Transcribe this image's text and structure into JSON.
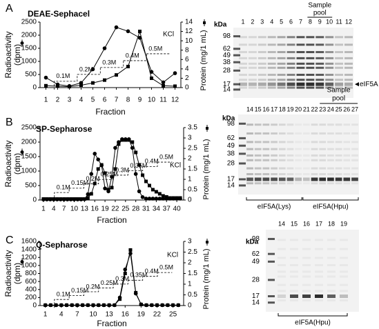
{
  "chart_data": [
    {
      "type": "line",
      "panel": "A",
      "title": "DEAE-Sephacel",
      "ylabel": [
        "Radioactivity",
        "(dpm)"
      ],
      "y2label": "Protein  (mg/1 mL)",
      "xlabel": "Fraction",
      "salt_label": "KCl",
      "salt_steps": [
        "0.1M",
        "0.2M",
        "0.3M",
        "0.4M",
        "0.5M"
      ],
      "x": [
        1,
        2,
        3,
        4,
        5,
        6,
        7,
        8,
        9,
        10,
        11,
        12
      ],
      "xlim": [
        0.5,
        12.5
      ],
      "xticks": [
        1,
        2,
        3,
        4,
        5,
        6,
        7,
        8,
        9,
        10,
        11,
        12
      ],
      "ylim": [
        0,
        2500
      ],
      "yticks": [
        0,
        500,
        1000,
        1500,
        2000,
        2500
      ],
      "y2lim": [
        0,
        14
      ],
      "y2ticks": [
        0,
        2,
        4,
        6,
        8,
        10,
        12,
        14
      ],
      "series": [
        {
          "marker": "circle",
          "color": "#000000",
          "values": [
            380,
            120,
            60,
            180,
            700,
            1500,
            2300,
            2150,
            1900,
            600,
            200,
            550
          ]
        },
        {
          "marker": "square",
          "color": "#000000",
          "axis": "y2",
          "values": [
            0.4,
            0.3,
            0.2,
            0.5,
            1.0,
            1.6,
            2.7,
            4.5,
            12.0,
            2.0,
            0.4,
            0.3
          ]
        }
      ]
    },
    {
      "type": "line",
      "panel": "B",
      "title": "SP-Sepharose",
      "ylabel": [
        "Radioactivity",
        "(dpm)"
      ],
      "y2label": "Protein  (mg/1 mL)",
      "xlabel": "Fraction",
      "salt_label": "KCl",
      "salt_steps": [
        "0.1M",
        "0.15M",
        "0.2M",
        "0.25M",
        "0.3M",
        "0.35M",
        "0.4M",
        "0.5M"
      ],
      "x": [
        1,
        2,
        3,
        4,
        5,
        6,
        7,
        8,
        9,
        10,
        11,
        12,
        13,
        14,
        15,
        16,
        17,
        18,
        19,
        20,
        21,
        22,
        23,
        24,
        25,
        26,
        27,
        28,
        29,
        30,
        31,
        32,
        33,
        34,
        35,
        36,
        37,
        38,
        39,
        40,
        41
      ],
      "xlim": [
        0,
        42
      ],
      "xticks": [
        1,
        4,
        7,
        10,
        13,
        16,
        19,
        22,
        25,
        28,
        31,
        34,
        37,
        40
      ],
      "ylim": [
        0,
        2500
      ],
      "yticks": [
        0,
        500,
        1000,
        1500,
        2000,
        2500
      ],
      "y2lim": [
        0,
        3.5
      ],
      "y2ticks": [
        0,
        0.5,
        1,
        1.5,
        2,
        2.5,
        3,
        3.5
      ],
      "series": [
        {
          "marker": "circle",
          "color": "#000000",
          "values": [
            20,
            20,
            20,
            20,
            20,
            20,
            20,
            20,
            20,
            20,
            20,
            20,
            30,
            200,
            900,
            1600,
            1400,
            1200,
            400,
            300,
            800,
            1800,
            2000,
            2100,
            2100,
            2100,
            1800,
            900,
            300,
            100,
            50,
            50,
            50,
            50,
            50,
            50,
            50,
            50,
            50,
            50,
            50
          ]
        },
        {
          "marker": "square",
          "color": "#000000",
          "axis": "y2",
          "values": [
            0.05,
            0.05,
            0.05,
            0.05,
            0.05,
            0.05,
            0.05,
            0.05,
            0.05,
            0.05,
            0.05,
            0.05,
            0.05,
            0.1,
            0.3,
            0.8,
            1.5,
            1.7,
            1.3,
            0.5,
            0.6,
            1.5,
            2.7,
            2.9,
            2.9,
            2.9,
            2.8,
            2.3,
            1.7,
            1.2,
            0.9,
            0.7,
            0.5,
            0.4,
            0.3,
            0.2,
            0.15,
            0.1,
            0.1,
            0.1,
            0.1
          ]
        }
      ]
    },
    {
      "type": "line",
      "panel": "C",
      "title": "Q-Sepharose",
      "ylabel": [
        "Radioactivity",
        "(dpm)"
      ],
      "y2label": "Protein  (mg/1 mL)",
      "xlabel": "Fraction",
      "salt_label": "KCl",
      "salt_steps": [
        "0.1M",
        "0.15M",
        "0.2M",
        "0.25M",
        "0.3M",
        "0.35M",
        "0.4M",
        "0.5M"
      ],
      "x": [
        1,
        2,
        3,
        4,
        5,
        6,
        7,
        8,
        9,
        10,
        11,
        12,
        13,
        14,
        15,
        16,
        17,
        18,
        19,
        20,
        21,
        22,
        23,
        24,
        25,
        26
      ],
      "xlim": [
        0,
        27
      ],
      "xticks": [
        1,
        4,
        7,
        10,
        13,
        16,
        19,
        22,
        25
      ],
      "ylim": [
        0,
        1600
      ],
      "yticks": [
        0,
        200,
        400,
        600,
        800,
        1000,
        1200,
        1400,
        1600
      ],
      "y2lim": [
        0,
        3
      ],
      "y2ticks": [
        0,
        0.5,
        1,
        1.5,
        2,
        2.5,
        3
      ],
      "series": [
        {
          "marker": "circle",
          "color": "#000000",
          "values": [
            10,
            10,
            10,
            10,
            10,
            10,
            10,
            10,
            10,
            10,
            10,
            10,
            10,
            10,
            200,
            900,
            1300,
            300,
            30,
            10,
            10,
            10,
            10,
            10,
            10,
            10
          ]
        },
        {
          "marker": "square",
          "color": "#000000",
          "axis": "y2",
          "values": [
            0.02,
            0.02,
            0.02,
            0.02,
            0.02,
            0.02,
            0.02,
            0.02,
            0.02,
            0.02,
            0.02,
            0.02,
            0.02,
            0.02,
            0.3,
            1.5,
            2.6,
            0.6,
            0.05,
            0.02,
            0.02,
            0.02,
            0.02,
            0.02,
            0.02,
            0.02
          ]
        }
      ]
    }
  ],
  "gels": [
    {
      "kda_label": "kDa",
      "markers": [
        98,
        62,
        49,
        38,
        28,
        17,
        14
      ],
      "lanes": [
        1,
        2,
        3,
        4,
        5,
        6,
        7,
        8,
        9,
        10,
        11,
        12
      ],
      "pool_label": [
        "Sample",
        "pool"
      ],
      "arrow_label": "eIF5A"
    },
    {
      "kda_label": "kDa",
      "markers": [
        98,
        62,
        49,
        38,
        28,
        17,
        14
      ],
      "lanes": [
        14,
        15,
        16,
        17,
        18,
        19,
        20,
        21,
        22,
        23,
        24,
        25,
        26,
        27
      ],
      "pool_label": [
        "Sample",
        "pool"
      ],
      "brackets": [
        "eIF5A(Lys)",
        "eIF5A(Hpu)"
      ]
    },
    {
      "kda_label": "kDa",
      "markers": [
        98,
        62,
        49,
        28,
        17,
        14
      ],
      "lanes": [
        14,
        15,
        16,
        17,
        18,
        19
      ],
      "brackets": [
        "eIF5A(Hpu)"
      ]
    }
  ]
}
